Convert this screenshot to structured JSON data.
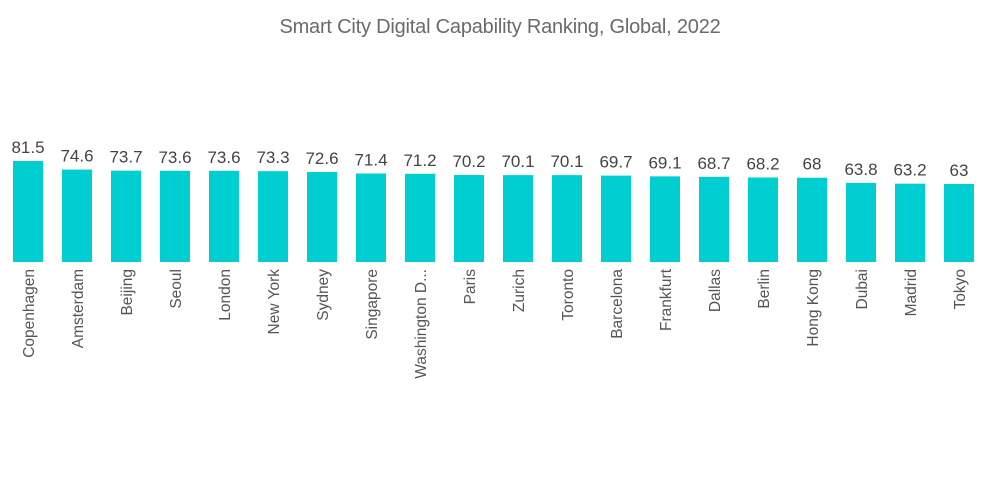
{
  "chart_data": {
    "type": "bar",
    "title": "Smart City Digital Capability Ranking, Global, 2022",
    "xlabel": "",
    "ylabel": "",
    "ylim": [
      0,
      81.5
    ],
    "grid": false,
    "legend": "none",
    "bar_color": "#00ced1",
    "categories": [
      "Copenhagen",
      "Amsterdam",
      "Beijing",
      "Seoul",
      "London",
      "New York",
      "Sydney",
      "Singapore",
      "Washington D...",
      "Paris",
      "Zurich",
      "Toronto",
      "Barcelona",
      "Frankfurt",
      "Dallas",
      "Berlin",
      "Hong Kong",
      "Dubai",
      "Madrid",
      "Tokyo"
    ],
    "values": [
      81.5,
      74.6,
      73.7,
      73.6,
      73.6,
      73.3,
      72.6,
      71.4,
      71.2,
      70.2,
      70.1,
      70.1,
      69.7,
      69.1,
      68.7,
      68.2,
      68,
      63.8,
      63.2,
      63
    ],
    "value_labels": [
      "81.5",
      "74.6",
      "73.7",
      "73.6",
      "73.6",
      "73.3",
      "72.6",
      "71.4",
      "71.2",
      "70.2",
      "70.1",
      "70.1",
      "69.7",
      "69.1",
      "68.7",
      "68.2",
      "68",
      "63.8",
      "63.2",
      "63"
    ]
  }
}
